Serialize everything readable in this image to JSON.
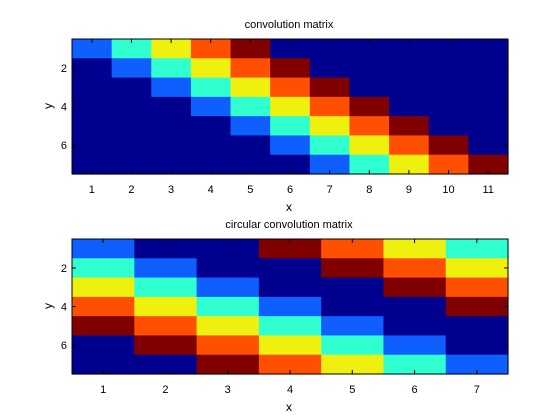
{
  "chart_data": [
    {
      "type": "heatmap",
      "title": "convolution matrix",
      "xlabel": "x",
      "ylabel": "y",
      "xlim": [
        0.5,
        11.5
      ],
      "ylim": [
        0.5,
        7.5
      ],
      "x_ticks": [
        1,
        2,
        3,
        4,
        5,
        6,
        7,
        8,
        9,
        10,
        11
      ],
      "y_ticks": [
        2,
        4,
        6
      ],
      "kernel": [
        1,
        2,
        3,
        4,
        5
      ],
      "values": [
        [
          1,
          2,
          3,
          4,
          5,
          0,
          0,
          0,
          0,
          0,
          0
        ],
        [
          0,
          1,
          2,
          3,
          4,
          5,
          0,
          0,
          0,
          0,
          0
        ],
        [
          0,
          0,
          1,
          2,
          3,
          4,
          5,
          0,
          0,
          0,
          0
        ],
        [
          0,
          0,
          0,
          1,
          2,
          3,
          4,
          5,
          0,
          0,
          0
        ],
        [
          0,
          0,
          0,
          0,
          1,
          2,
          3,
          4,
          5,
          0,
          0
        ],
        [
          0,
          0,
          0,
          0,
          0,
          1,
          2,
          3,
          4,
          5,
          0
        ],
        [
          0,
          0,
          0,
          0,
          0,
          0,
          1,
          2,
          3,
          4,
          5
        ]
      ],
      "colormap": "jet",
      "grid": false
    },
    {
      "type": "heatmap",
      "title": "circular convolution matrix",
      "xlabel": "x",
      "ylabel": "y",
      "xlim": [
        0.5,
        7.5
      ],
      "ylim": [
        0.5,
        7.5
      ],
      "x_ticks": [
        1,
        2,
        3,
        4,
        5,
        6,
        7
      ],
      "y_ticks": [
        2,
        4,
        6
      ],
      "kernel": [
        1,
        2,
        3,
        4,
        5
      ],
      "values": [
        [
          1,
          0,
          0,
          5,
          4,
          3,
          2
        ],
        [
          2,
          1,
          0,
          0,
          5,
          4,
          3
        ],
        [
          3,
          2,
          1,
          0,
          0,
          5,
          4
        ],
        [
          4,
          3,
          2,
          1,
          0,
          0,
          5
        ],
        [
          5,
          4,
          3,
          2,
          1,
          0,
          0
        ],
        [
          0,
          5,
          4,
          3,
          2,
          1,
          0
        ],
        [
          0,
          0,
          5,
          4,
          3,
          2,
          1
        ]
      ],
      "colormap": "jet",
      "grid": false
    }
  ],
  "colors": {
    "0": "#00008f",
    "1": "#0f5fff",
    "2": "#30ffcf",
    "3": "#f0f00f",
    "4": "#ff4f00",
    "5": "#800000"
  }
}
